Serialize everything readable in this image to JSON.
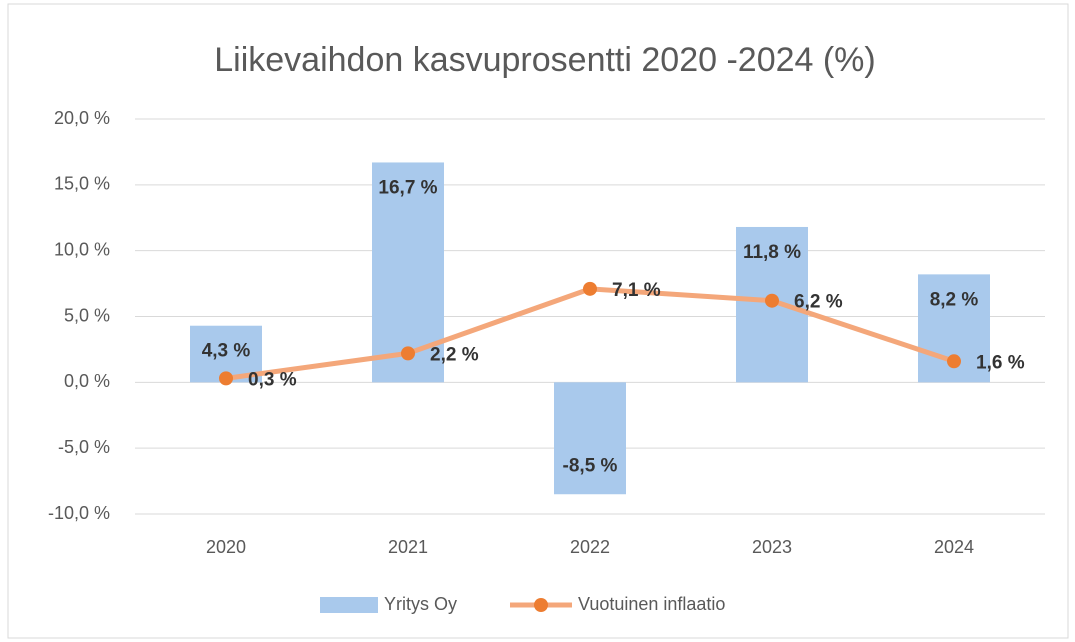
{
  "chart_data": {
    "type": "combo",
    "title": "Liikevaihdon kasvuprosentti 2020 -2024 (%)",
    "categories": [
      "2020",
      "2021",
      "2022",
      "2023",
      "2024"
    ],
    "series": [
      {
        "name": "Yritys Oy",
        "type": "bar",
        "color": "#a9c9ec",
        "values": [
          4.3,
          16.7,
          -8.5,
          11.8,
          8.2
        ],
        "value_labels": [
          "4,3 %",
          "16,7 %",
          "-8,5 %",
          "11,8 %",
          "8,2 %"
        ]
      },
      {
        "name": "Vuotuinen inflaatio",
        "type": "line",
        "color": "#f4a77a",
        "marker_color": "#ed7d31",
        "values": [
          0.3,
          2.2,
          7.1,
          6.2,
          1.6
        ],
        "value_labels": [
          "0,3 %",
          "2,2 %",
          "7,1 %",
          "6,2 %",
          "1,6 %"
        ]
      }
    ],
    "ylim": [
      -10,
      20
    ],
    "yticks": [
      {
        "value": -10,
        "label": "-10,0 %"
      },
      {
        "value": -5,
        "label": "-5,0 %"
      },
      {
        "value": 0,
        "label": "0,0 %"
      },
      {
        "value": 5,
        "label": "5,0 %"
      },
      {
        "value": 10,
        "label": "10,0 %"
      },
      {
        "value": 15,
        "label": "15,0 %"
      },
      {
        "value": 20,
        "label": "20,0 %"
      }
    ],
    "grid": true,
    "legend": "bottom"
  }
}
